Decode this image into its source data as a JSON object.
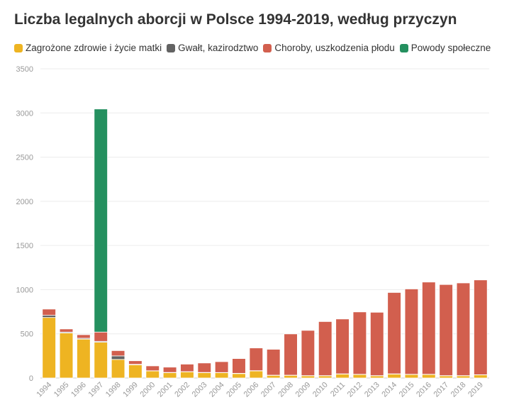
{
  "chart_data": {
    "type": "bar",
    "stacked": true,
    "title": "Liczba legalnych aborcji w Polsce 1994-2019, według przyczyn",
    "categories": [
      "1994",
      "1995",
      "1996",
      "1997",
      "1998",
      "1999",
      "2000",
      "2001",
      "2002",
      "2003",
      "2004",
      "2005",
      "2006",
      "2007",
      "2008",
      "2009",
      "2010",
      "2011",
      "2012",
      "2013",
      "2014",
      "2015",
      "2016",
      "2017",
      "2018",
      "2019"
    ],
    "series": [
      {
        "name": "Zagrożone zdrowie i życie matki",
        "color": "#eeb422",
        "values": [
          685,
          510,
          440,
          405,
          210,
          150,
          80,
          60,
          70,
          60,
          60,
          50,
          80,
          30,
          30,
          25,
          25,
          45,
          40,
          25,
          45,
          40,
          40,
          25,
          25,
          35
        ]
      },
      {
        "name": "Gwałt, kazirodztwo",
        "color": "#636363",
        "values": [
          25,
          10,
          10,
          10,
          40,
          5,
          2,
          3,
          2,
          3,
          2,
          3,
          3,
          2,
          2,
          2,
          2,
          2,
          2,
          2,
          2,
          2,
          2,
          2,
          2,
          2
        ]
      },
      {
        "name": "Choroby, uszkodzenia płodu",
        "color": "#d25f4e",
        "values": [
          70,
          35,
          40,
          105,
          60,
          40,
          55,
          60,
          85,
          107,
          123,
          167,
          257,
          293,
          467,
          512,
          612,
          621,
          706,
          717,
          921,
          966,
          1044,
          1031,
          1049,
          1073
        ]
      },
      {
        "name": "Powody społeczne",
        "color": "#24905f",
        "values": [
          0,
          0,
          0,
          2525,
          0,
          0,
          0,
          0,
          0,
          0,
          0,
          0,
          0,
          0,
          0,
          0,
          0,
          0,
          0,
          0,
          0,
          0,
          0,
          0,
          0,
          0
        ]
      }
    ],
    "ylim": [
      0,
      3500
    ],
    "yticks": [
      "0",
      "500",
      "1000",
      "1500",
      "2000",
      "2500",
      "3000",
      "3500"
    ],
    "grid": true,
    "legend_position": "top"
  }
}
